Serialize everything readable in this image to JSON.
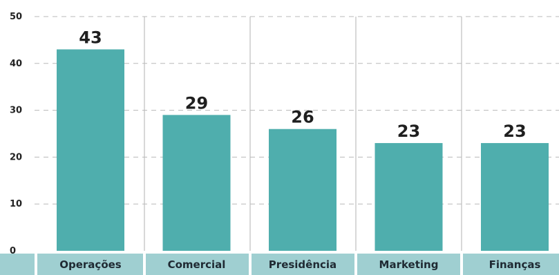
{
  "chart_data": {
    "type": "bar",
    "categories": [
      "Operações",
      "Comercial",
      "Presidência",
      "Marketing",
      "Finanças"
    ],
    "values": [
      43,
      29,
      26,
      23,
      23
    ],
    "data_labels": [
      "43",
      "29",
      "26",
      "23",
      "23"
    ],
    "title": "",
    "xlabel": "",
    "ylabel": "",
    "ylim": [
      0,
      50
    ],
    "yticks": [
      0,
      10,
      20,
      30,
      40,
      50
    ],
    "ytick_labels": [
      "0",
      "10",
      "20",
      "30",
      "40",
      "50"
    ],
    "grid": true,
    "legend": "none",
    "colors": {
      "bar": "#4faead",
      "category_band": "#9fcfd1",
      "grid": "#b8b8b8",
      "separator": "#bdbdbd",
      "text": "#222222"
    }
  }
}
